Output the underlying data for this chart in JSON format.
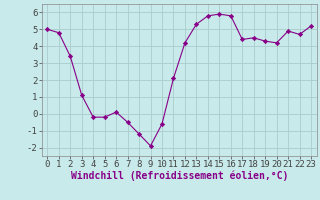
{
  "x": [
    0,
    1,
    2,
    3,
    4,
    5,
    6,
    7,
    8,
    9,
    10,
    11,
    12,
    13,
    14,
    15,
    16,
    17,
    18,
    19,
    20,
    21,
    22,
    23
  ],
  "y": [
    5.0,
    4.8,
    3.4,
    1.1,
    -0.2,
    -0.2,
    0.1,
    -0.5,
    -1.2,
    -1.9,
    -0.6,
    2.1,
    4.2,
    5.3,
    5.8,
    5.9,
    5.8,
    4.4,
    4.5,
    4.3,
    4.2,
    4.9,
    4.7,
    5.2
  ],
  "line_color": "#880088",
  "marker": "D",
  "marker_size": 2.2,
  "bg_color": "#c8eaea",
  "grid_color": "#aacccc",
  "xlabel": "Windchill (Refroidissement éolien,°C)",
  "xlabel_fontsize": 7,
  "tick_fontsize": 6.5,
  "ylim": [
    -2.5,
    6.5
  ],
  "xlim": [
    -0.5,
    23.5
  ],
  "yticks": [
    -2,
    -1,
    0,
    1,
    2,
    3,
    4,
    5,
    6
  ],
  "xticks": [
    0,
    1,
    2,
    3,
    4,
    5,
    6,
    7,
    8,
    9,
    10,
    11,
    12,
    13,
    14,
    15,
    16,
    17,
    18,
    19,
    20,
    21,
    22,
    23
  ],
  "spine_color": "#888888",
  "tick_color": "#444444"
}
